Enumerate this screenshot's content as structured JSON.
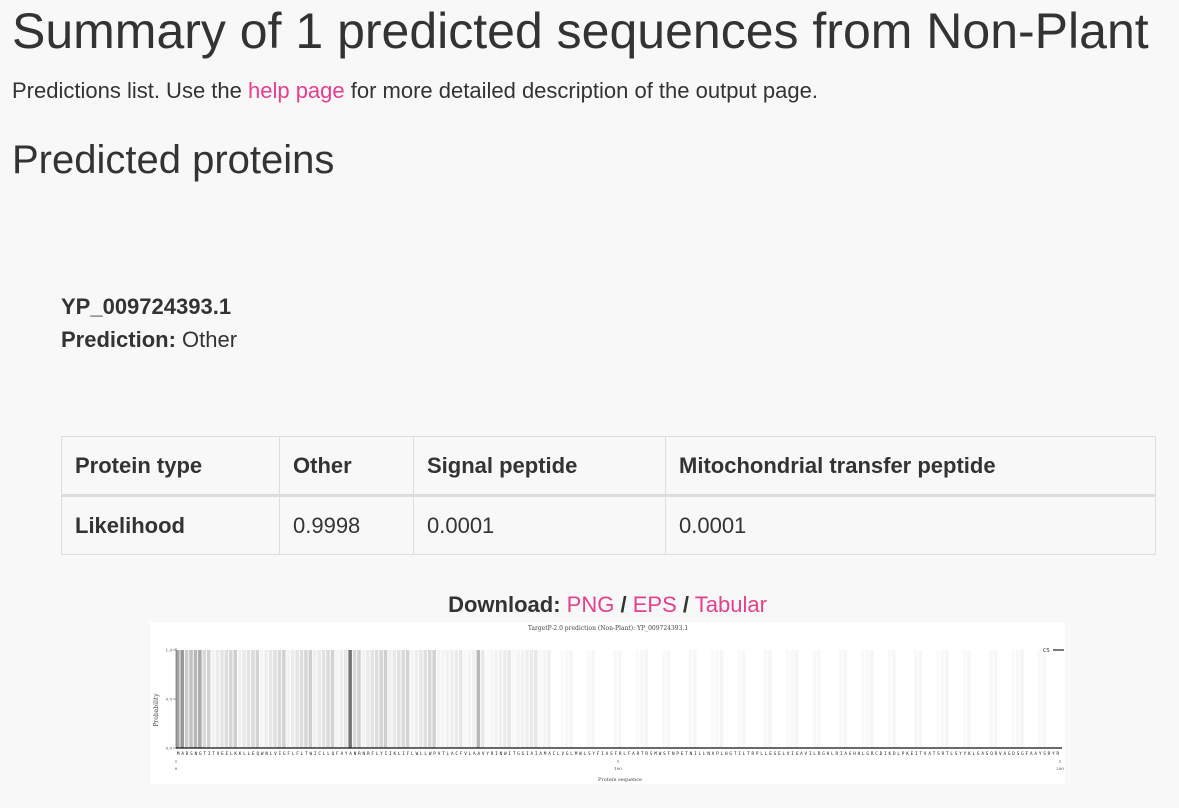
{
  "page": {
    "title": "Summary of 1 predicted sequences from Non-Plant",
    "intro_before": "Predictions list. Use the ",
    "intro_link": "help page",
    "intro_after": " for more detailed description of the output page.",
    "section_title": "Predicted proteins"
  },
  "protein": {
    "id": "YP_009724393.1",
    "prediction_label": "Prediction:",
    "prediction_value": "Other"
  },
  "table": {
    "headers": [
      "Protein type",
      "Other",
      "Signal peptide",
      "Mitochondrial transfer peptide"
    ],
    "row_label": "Likelihood",
    "values": [
      "0.9998",
      "0.0001",
      "0.0001"
    ]
  },
  "download": {
    "label": "Download:",
    "sep": "/",
    "links": [
      "PNG",
      "EPS",
      "Tabular"
    ]
  },
  "colors": {
    "accent": "#e83e8c",
    "text": "#333333",
    "border": "#dddddd"
  },
  "chart_data": {
    "type": "line",
    "title": "TargetP-2.0 prediction (Non-Plant): YP_009724393.1",
    "xlabel": "Protein sequence",
    "ylabel": "Probability",
    "xlim": [
      0,
      200
    ],
    "ylim": [
      0.0,
      1.0
    ],
    "xticks": [
      0,
      100,
      200
    ],
    "yticks": [
      "0.0",
      "0.5",
      "1.0"
    ],
    "legend": {
      "entries": [
        "CS"
      ],
      "placement": "top-right"
    },
    "sequence": "MADSNGTITVEELKKLLEQWNLVIGFLFLTWICLLQFAYANRNRFLYIIKLIFLWLLWPVTLACFVLAAVYRINWITGGIAIAMACLVGLMWLSYFIASFRLFARTRSMWSFNPETNILLNVPLHGTILTRPLLESELVIGAVILRGHLRIAGHHLGRCDIKDLPKEITVATSRTLSYYKLGASQRVAGDSGFAAYSRYR",
    "series": [
      {
        "name": "CS",
        "values": []
      }
    ]
  }
}
